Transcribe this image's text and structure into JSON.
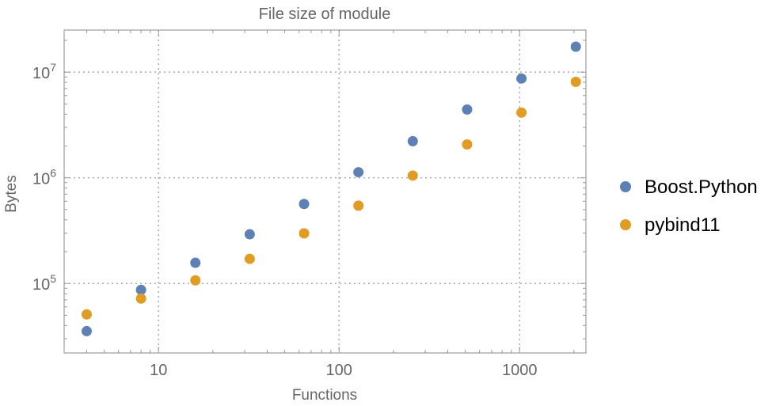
{
  "chart_data": {
    "type": "scatter",
    "title": "File size of module",
    "xlabel": "Functions",
    "ylabel": "Bytes",
    "xscale": "log",
    "yscale": "log",
    "xlim": [
      3,
      2330
    ],
    "ylim": [
      22000,
      25000000
    ],
    "grid": true,
    "legend_position": "right",
    "x_ticks": [
      {
        "value": 10,
        "label": "10"
      },
      {
        "value": 100,
        "label": "100"
      },
      {
        "value": 1000,
        "label": "1000"
      }
    ],
    "y_ticks": [
      {
        "value": 100000,
        "base": "10",
        "exp": "5"
      },
      {
        "value": 1000000,
        "base": "10",
        "exp": "6"
      },
      {
        "value": 10000000,
        "base": "10",
        "exp": "7"
      }
    ],
    "x": [
      4,
      8,
      16,
      32,
      64,
      128,
      256,
      512,
      1024,
      2048
    ],
    "series": [
      {
        "name": "Boost.Python",
        "color": "#5E81B5",
        "values": [
          35400,
          87000,
          157000,
          292000,
          565000,
          1130000,
          2220000,
          4430000,
          8700000,
          17400000
        ]
      },
      {
        "name": "pybind11",
        "color": "#E19C24",
        "values": [
          51000,
          72000,
          107000,
          171000,
          298000,
          545000,
          1050000,
          2070000,
          4140000,
          8100000
        ]
      }
    ]
  }
}
